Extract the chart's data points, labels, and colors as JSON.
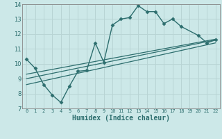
{
  "xlabel": "Humidex (Indice chaleur)",
  "xlim": [
    -0.5,
    22.5
  ],
  "ylim": [
    7,
    14
  ],
  "yticks": [
    7,
    8,
    9,
    10,
    11,
    12,
    13,
    14
  ],
  "xticks": [
    0,
    1,
    2,
    3,
    4,
    5,
    6,
    7,
    8,
    9,
    10,
    11,
    12,
    13,
    14,
    15,
    16,
    17,
    18,
    19,
    20,
    21,
    22
  ],
  "bg_color": "#cce8e8",
  "grid_color": "#b8d4d4",
  "line_color": "#2d6e6e",
  "series": [
    {
      "x": [
        0,
        1,
        2,
        3,
        4,
        5,
        6,
        7,
        8,
        9,
        10,
        11,
        12,
        13,
        14,
        15,
        16,
        17,
        18,
        20,
        21,
        22
      ],
      "y": [
        10.3,
        9.7,
        8.6,
        7.9,
        7.4,
        8.5,
        9.5,
        9.55,
        11.4,
        10.1,
        12.6,
        13.0,
        13.1,
        13.9,
        13.5,
        13.5,
        12.7,
        13.0,
        12.5,
        11.9,
        11.4,
        11.6
      ],
      "marker": "D",
      "markersize": 2.5,
      "linewidth": 1.0
    },
    {
      "x": [
        0,
        22
      ],
      "y": [
        8.6,
        11.4
      ],
      "marker": null,
      "linewidth": 0.9
    },
    {
      "x": [
        0,
        22
      ],
      "y": [
        9.0,
        11.6
      ],
      "marker": null,
      "linewidth": 0.9
    },
    {
      "x": [
        0,
        22
      ],
      "y": [
        9.3,
        11.65
      ],
      "marker": null,
      "linewidth": 0.9
    }
  ]
}
